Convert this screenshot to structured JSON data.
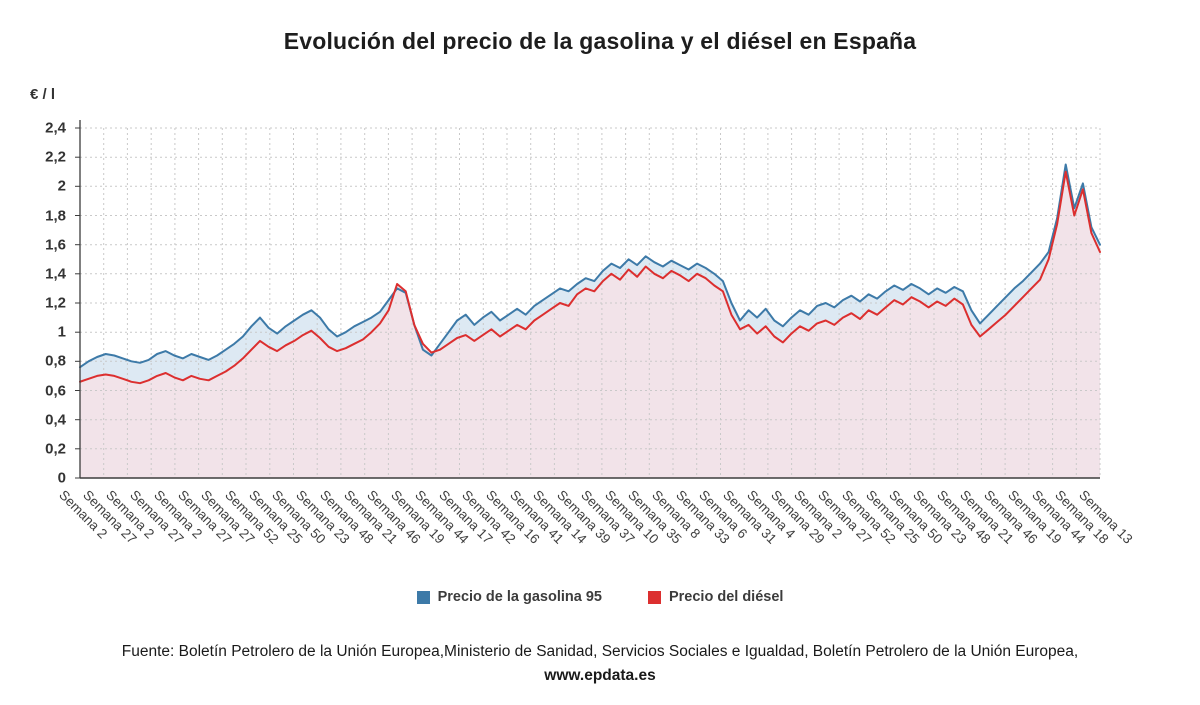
{
  "title": "Evolución del precio de la gasolina y el diésel en España",
  "y_axis_unit": "€ / l",
  "legend": [
    {
      "label": "Precio de la gasolina 95",
      "color": "#3d7aa8"
    },
    {
      "label": "Precio del diésel",
      "color": "#dc2f2f"
    }
  ],
  "source": {
    "text": "Fuente: Boletín Petrolero de la Unión Europea,Ministerio de Sanidad, Servicios Sociales e Igualdad, Boletín Petrolero de la Unión Europea,",
    "link": "www.epdata.es"
  },
  "chart_data": {
    "type": "line",
    "title": "Evolución del precio de la gasolina y el diésel en España",
    "xlabel": "",
    "ylabel": "€ / l",
    "ylim": [
      0,
      2.4
    ],
    "grid": "dotted",
    "legend_position": "bottom",
    "y_ticks": [
      "0",
      "0,2",
      "0,4",
      "0,6",
      "0,8",
      "1",
      "1,2",
      "1,4",
      "1,6",
      "1,8",
      "2",
      "2,2",
      "2,4"
    ],
    "x_labels": [
      "Semana 2",
      "Semana 27",
      "Semana 2",
      "Semana 27",
      "Semana 2",
      "Semana 27",
      "Semana 27",
      "Semana 52",
      "Semana 25",
      "Semana 50",
      "Semana 23",
      "Semana 48",
      "Semana 21",
      "Semana 46",
      "Semana 19",
      "Semana 44",
      "Semana 17",
      "Semana 42",
      "Semana 16",
      "Semana 41",
      "Semana 14",
      "Semana 39",
      "Semana 37",
      "Semana 10",
      "Semana 35",
      "Semana 8",
      "Semana 33",
      "Semana 6",
      "Semana 31",
      "Semana 4",
      "Semana 29",
      "Semana 2",
      "Semana 27",
      "Semana 52",
      "Semana 25",
      "Semana 50",
      "Semana 23",
      "Semana 48",
      "Semana 21",
      "Semana 46",
      "Semana 19",
      "Semana 44",
      "Semana 18",
      "Semana 13"
    ],
    "series": [
      {
        "name": "Precio de la gasolina 95",
        "color": "#3d7aa8",
        "fill": "#dde9f3",
        "values": [
          0.76,
          0.8,
          0.83,
          0.85,
          0.84,
          0.82,
          0.8,
          0.79,
          0.81,
          0.85,
          0.87,
          0.84,
          0.82,
          0.85,
          0.83,
          0.81,
          0.84,
          0.88,
          0.92,
          0.97,
          1.04,
          1.1,
          1.03,
          0.99,
          1.04,
          1.08,
          1.12,
          1.15,
          1.1,
          1.02,
          0.97,
          1.0,
          1.04,
          1.07,
          1.1,
          1.14,
          1.22,
          1.3,
          1.27,
          1.05,
          0.88,
          0.84,
          0.92,
          1.0,
          1.08,
          1.12,
          1.05,
          1.1,
          1.14,
          1.08,
          1.12,
          1.16,
          1.12,
          1.18,
          1.22,
          1.26,
          1.3,
          1.28,
          1.33,
          1.37,
          1.35,
          1.42,
          1.47,
          1.44,
          1.5,
          1.46,
          1.52,
          1.48,
          1.45,
          1.49,
          1.46,
          1.43,
          1.47,
          1.44,
          1.4,
          1.35,
          1.2,
          1.08,
          1.15,
          1.1,
          1.16,
          1.08,
          1.04,
          1.1,
          1.15,
          1.12,
          1.18,
          1.2,
          1.17,
          1.22,
          1.25,
          1.21,
          1.26,
          1.23,
          1.28,
          1.32,
          1.29,
          1.33,
          1.3,
          1.26,
          1.3,
          1.27,
          1.31,
          1.28,
          1.15,
          1.06,
          1.12,
          1.18,
          1.24,
          1.3,
          1.35,
          1.41,
          1.47,
          1.55,
          1.78,
          2.15,
          1.85,
          2.02,
          1.72,
          1.6
        ]
      },
      {
        "name": "Precio del diésel",
        "color": "#dc2f2f",
        "fill": "#f2e3e9",
        "values": [
          0.66,
          0.68,
          0.7,
          0.71,
          0.7,
          0.68,
          0.66,
          0.65,
          0.67,
          0.7,
          0.72,
          0.69,
          0.67,
          0.7,
          0.68,
          0.67,
          0.7,
          0.73,
          0.77,
          0.82,
          0.88,
          0.94,
          0.9,
          0.87,
          0.91,
          0.94,
          0.98,
          1.01,
          0.96,
          0.9,
          0.87,
          0.89,
          0.92,
          0.95,
          1.0,
          1.06,
          1.15,
          1.33,
          1.28,
          1.05,
          0.92,
          0.86,
          0.88,
          0.92,
          0.96,
          0.98,
          0.94,
          0.98,
          1.02,
          0.97,
          1.01,
          1.05,
          1.02,
          1.08,
          1.12,
          1.16,
          1.2,
          1.18,
          1.26,
          1.3,
          1.28,
          1.35,
          1.4,
          1.36,
          1.43,
          1.38,
          1.45,
          1.4,
          1.37,
          1.42,
          1.39,
          1.35,
          1.4,
          1.37,
          1.32,
          1.28,
          1.12,
          1.02,
          1.05,
          0.99,
          1.04,
          0.97,
          0.93,
          0.99,
          1.04,
          1.01,
          1.06,
          1.08,
          1.05,
          1.1,
          1.13,
          1.09,
          1.15,
          1.12,
          1.17,
          1.22,
          1.19,
          1.24,
          1.21,
          1.17,
          1.21,
          1.18,
          1.23,
          1.19,
          1.05,
          0.97,
          1.02,
          1.07,
          1.12,
          1.18,
          1.24,
          1.3,
          1.36,
          1.5,
          1.74,
          2.1,
          1.8,
          1.98,
          1.68,
          1.55
        ]
      }
    ]
  }
}
